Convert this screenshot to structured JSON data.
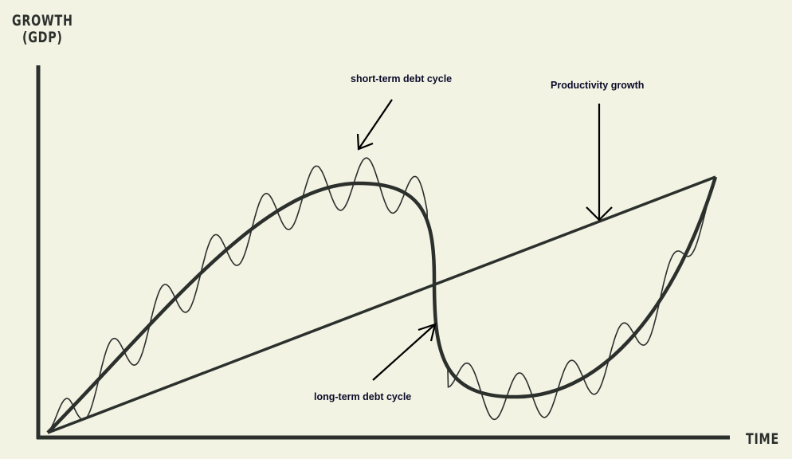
{
  "axes": {
    "y_title_line1": "GROWTH",
    "y_title_line2": "(GDP)",
    "x_title": "TIME"
  },
  "annotations": {
    "short_term": "short-term debt cycle",
    "productivity": "Productivity growth",
    "long_term": "long-term debt cycle"
  },
  "colors": {
    "background": "#f2f3e3",
    "ink": "#2c302d",
    "label": "#0b0b2a"
  }
}
